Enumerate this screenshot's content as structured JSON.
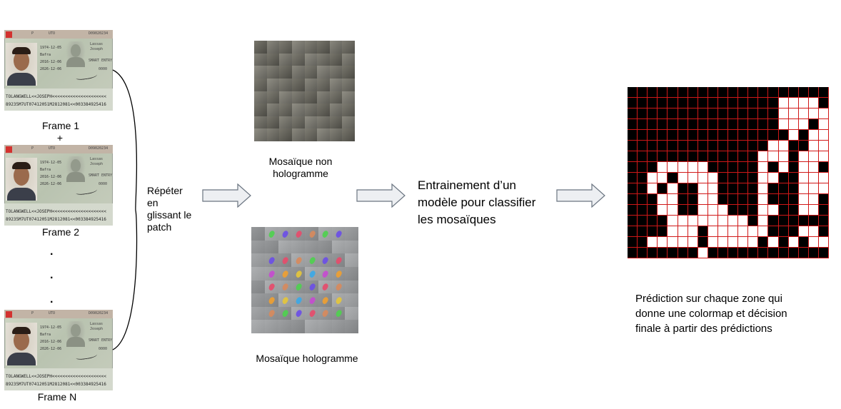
{
  "frames": [
    {
      "label": "Frame 1"
    },
    {
      "label": "Frame 2"
    },
    {
      "label": "Frame N"
    }
  ],
  "plus": "+",
  "dots": [
    ".",
    ".",
    "."
  ],
  "card": {
    "top_left": "P",
    "top_mid": "UTO",
    "top_right": "D09020234",
    "field1": "1974-12-05",
    "field2": "Bafra",
    "field3": "2016-12-06",
    "field4": "2026-12-06",
    "right1": "Lassas",
    "right2": "Joseph",
    "right3": "SMART ENTRY",
    "right4": "0000",
    "mrz1": "TOLANGWELL<<JOSEPH<<<<<<<<<<<<<<<<<<<<<",
    "mrz2": "89235M7UT07412051M2812081<<003384925416"
  },
  "repeat_text": "Répéter\nen\nglissant le\npatch",
  "mosaic_non_label": "Mosaïque non\nhologramme",
  "mosaic_holo_label": "Mosaïque hologramme",
  "training_text": "Entrainement d’un\nmodèle pour classifier\nles mosaïques",
  "prediction_text": "Prédiction sur chaque zone qui\ndonne une colormap et décision\nfinale à partir des prédictions",
  "colors": {
    "arrow_fill": "#edeff2",
    "arrow_stroke": "#6b7581",
    "grid_line": "#d01818",
    "cell_positive": "#ffffff",
    "cell_negative": "#000000"
  },
  "prediction_map": [
    "00000000000000000000",
    "00000000000000011110",
    "00000000000000011111",
    "00000000000000011101",
    "00000000000000001011",
    "00000000000000110011",
    "00000000000001110111",
    "00011111000001010110",
    "00110111100001100111",
    "00101001100001000111",
    "00011001100001000110",
    "00011001110001100110",
    "00001111111101000000",
    "00001110111111000110",
    "00111110111110101011",
    "00000001000000000000"
  ]
}
